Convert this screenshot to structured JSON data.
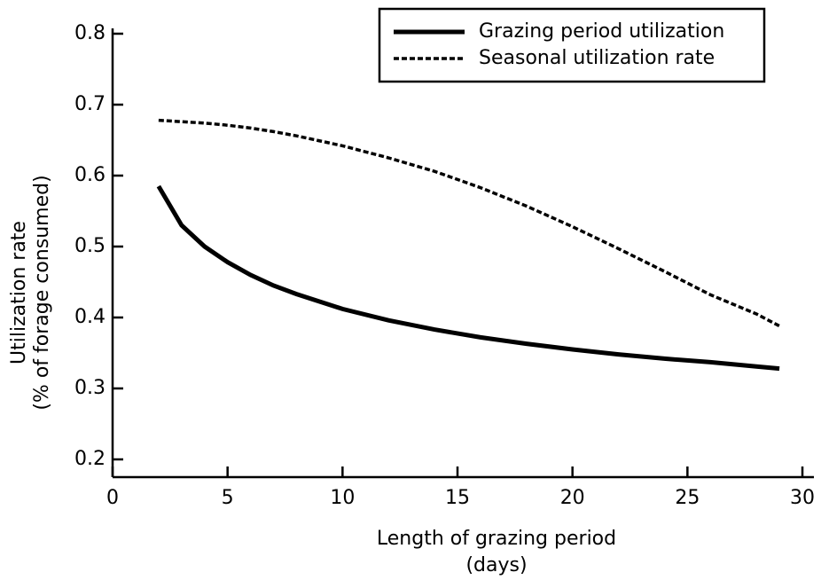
{
  "chart_data": {
    "type": "line",
    "x_label": "Length of grazing period",
    "x_label_2": "(days)",
    "y_label": "Utilization rate",
    "y_label_2": "(% of forage consumed)",
    "x": [
      2,
      3,
      4,
      5,
      6,
      7,
      8,
      10,
      12,
      14,
      16,
      18,
      20,
      22,
      24,
      26,
      28,
      29
    ],
    "series": [
      {
        "name": "Grazing period utilization",
        "color": "#000000",
        "dash": false,
        "values": [
          0.585,
          0.53,
          0.5,
          0.478,
          0.46,
          0.445,
          0.433,
          0.412,
          0.396,
          0.383,
          0.372,
          0.363,
          0.355,
          0.348,
          0.342,
          0.337,
          0.331,
          0.328
        ]
      },
      {
        "name": "Seasonal utilization rate",
        "color": "#000000",
        "dash": true,
        "values": [
          0.678,
          0.676,
          0.674,
          0.671,
          0.667,
          0.662,
          0.656,
          0.642,
          0.625,
          0.606,
          0.583,
          0.557,
          0.528,
          0.497,
          0.465,
          0.432,
          0.405,
          0.388
        ]
      }
    ],
    "xlim": [
      0,
      30.5
    ],
    "ylim": [
      0.175,
      0.8
    ],
    "xticks": [
      0,
      5,
      10,
      15,
      20,
      25,
      30
    ],
    "yticks": [
      0.2,
      0.3,
      0.4,
      0.5,
      0.6,
      0.7,
      0.8
    ],
    "grid": false,
    "legend": "upper right"
  }
}
